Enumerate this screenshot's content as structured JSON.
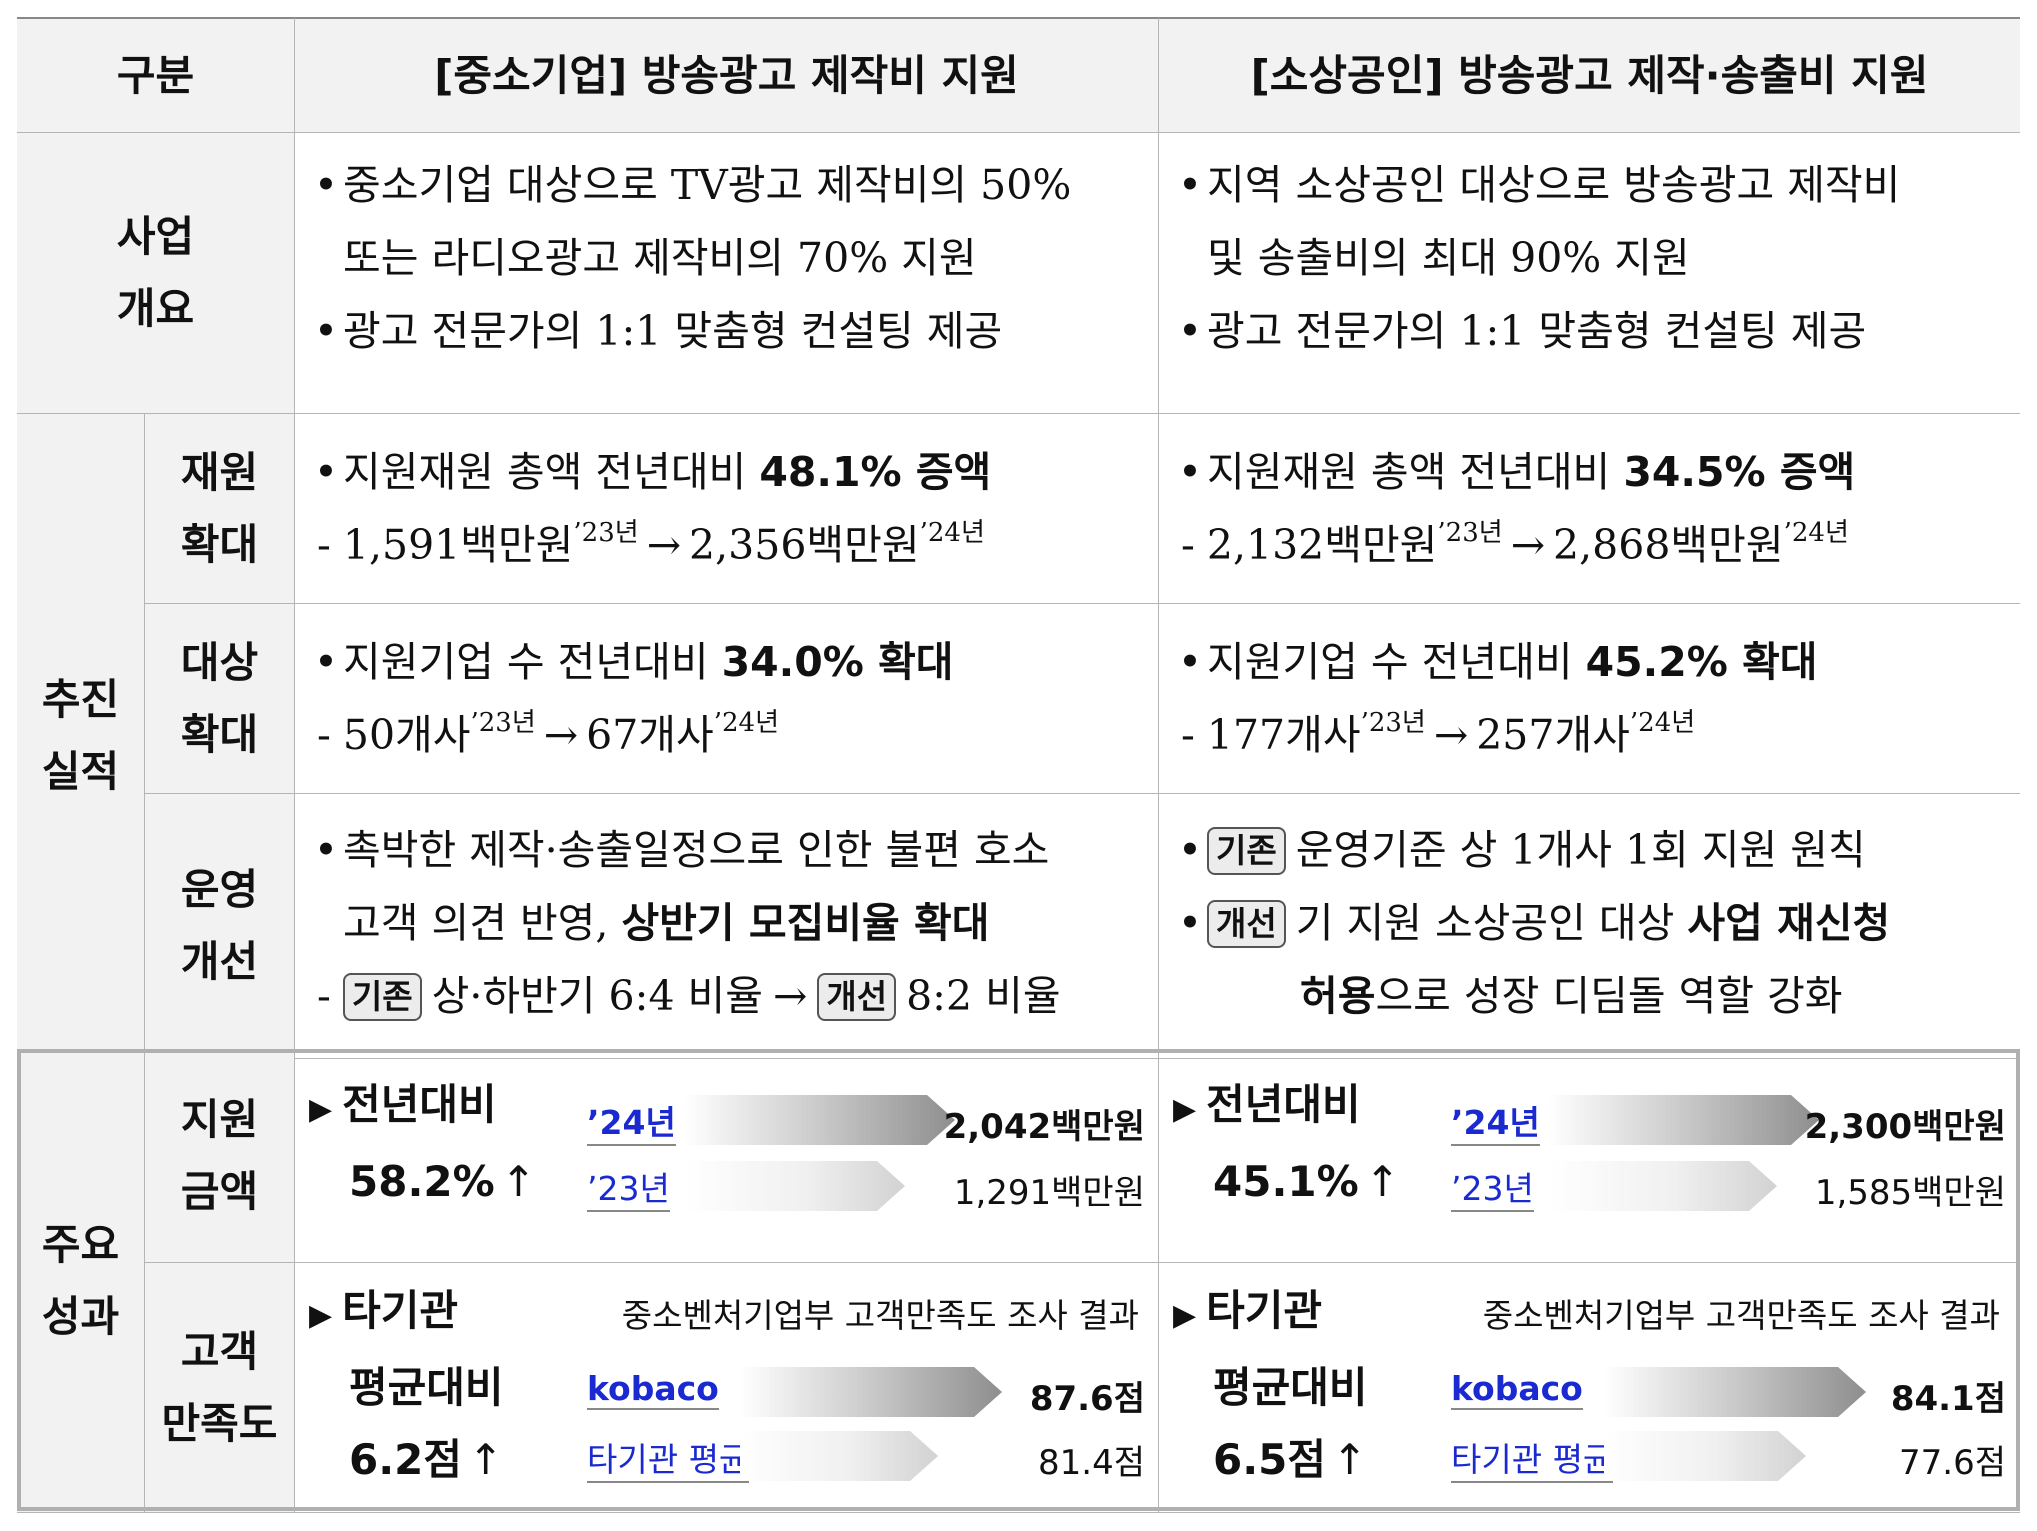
{
  "header": {
    "col0": "구분",
    "col1": "[중소기업] 방송광고 제작비 지원",
    "col2": "[소상공인] 방송광고 제작·송출비 지원"
  },
  "overview": {
    "label": [
      "사업",
      "개요"
    ],
    "left": {
      "line1": "중소기업 대상으로 TV광고 제작비의 50%",
      "line2": "또는 라디오광고 제작비의 70% 지원",
      "line3": "광고 전문가의 1:1 맞춤형 컨설팅 제공"
    },
    "right": {
      "line1": "지역 소상공인 대상으로 방송광고 제작비",
      "line2": "및 송출비의 최대 90% 지원",
      "line3": "광고 전문가의 1:1 맞춤형 컨설팅 제공"
    }
  },
  "performance": {
    "label": [
      "추진",
      "실적"
    ],
    "funding": {
      "label": [
        "재원",
        "확대"
      ],
      "left": {
        "text": "지원재원 총액 전년대비 ",
        "bold": "48.1% 증액",
        "from": "1,591백만원",
        "from_sup": "’23년",
        "to": "2,356백만원",
        "to_sup": "’24년"
      },
      "right": {
        "text": "지원재원 총액 전년대비 ",
        "bold": "34.5% 증액",
        "from": "2,132백만원",
        "from_sup": "’23년",
        "to": "2,868백만원",
        "to_sup": "’24년"
      }
    },
    "target": {
      "label": [
        "대상",
        "확대"
      ],
      "left": {
        "text": "지원기업 수 전년대비 ",
        "bold": "34.0% 확대",
        "from": "50개사",
        "from_sup": "’23년",
        "to": "67개사",
        "to_sup": "’24년"
      },
      "right": {
        "text": "지원기업 수 전년대비 ",
        "bold": "45.2% 확대",
        "from": "177개사",
        "from_sup": "’23년",
        "to": "257개사",
        "to_sup": "’24년"
      }
    },
    "operation": {
      "label": [
        "운영",
        "개선"
      ],
      "left": {
        "line1": "촉박한 제작·송출일정으로 인한 불편 호소",
        "line2_text": "고객 의견 반영, ",
        "line2_bold": "상반기 모집비율 확대",
        "tag_before": "기존",
        "before": "상·하반기 6:4 비율",
        "tag_after": "개선",
        "after": "8:2 비율"
      },
      "right": {
        "tag_before": "기존",
        "before": "운영기준 상 1개사 1회 지원 원칙",
        "tag_after": "개선",
        "after_text": "기 지원 소상공인 대상 ",
        "after_bold1": "사업 재신청",
        "after_bold2": "허용",
        "after_tail": "으로 성장 디딤돌 역할 강화"
      }
    }
  },
  "results": {
    "label": [
      "주요",
      "성과"
    ],
    "amount": {
      "label": [
        "지원",
        "금액"
      ],
      "left": {
        "title1": "전년대비",
        "title2": "58.2%",
        "bar1_label": "’24년",
        "bar1_value": "2,042백만원",
        "bar2_label": "’23년",
        "bar2_value": "1,291백만원",
        "values": [
          2042,
          1291
        ]
      },
      "right": {
        "title1": "전년대비",
        "title2": "45.1%",
        "bar1_label": "’24년",
        "bar1_value": "2,300백만원",
        "bar2_label": "’23년",
        "bar2_value": "1,585백만원",
        "values": [
          2300,
          1585
        ]
      }
    },
    "satisfaction": {
      "label": [
        "고객",
        "만족도"
      ],
      "left": {
        "title1": "타기관",
        "title2": "평균대비",
        "title3": "6.2점",
        "caption": "중소벤처기업부 고객만족도 조사 결과",
        "bar1_label": "kobaco",
        "bar1_value": "87.6점",
        "bar2_label": "타기관 평균",
        "bar2_value": "81.4점",
        "values": [
          87.6,
          81.4
        ]
      },
      "right": {
        "title1": "타기관",
        "title2": "평균대비",
        "title3": "6.5점",
        "caption": "중소벤처기업부 고객만족도 조사 결과",
        "bar1_label": "kobaco",
        "bar1_value": "84.1점",
        "bar2_label": "타기관 평균",
        "bar2_value": "77.6점",
        "values": [
          84.1,
          77.6
        ]
      }
    }
  },
  "symbols": {
    "bullet": "•",
    "dash": "-",
    "arrow": "→",
    "triangle": "▶",
    "up": "↑"
  }
}
